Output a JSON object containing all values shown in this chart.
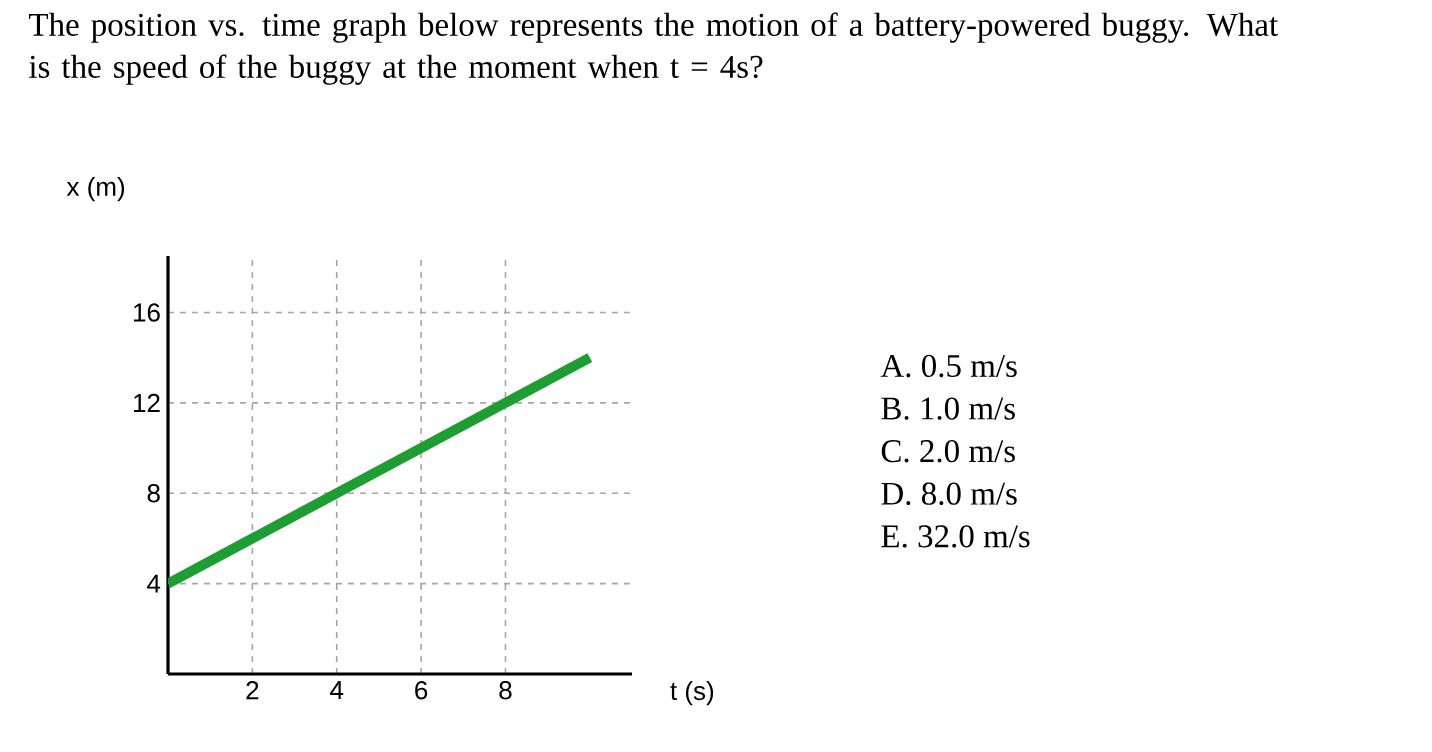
{
  "chart_data": {
    "type": "line",
    "title": "The position vs. time graph below represents the motion of a battery-powered buggy. What is the speed of the buggy at the moment when t = 4s?",
    "xlabel": "t (s)",
    "ylabel": "x (m)",
    "x": [
      0,
      10
    ],
    "series": [
      {
        "color": "#1e9e32",
        "values": [
          4,
          14
        ]
      }
    ],
    "xlim": [
      0,
      11
    ],
    "ylim": [
      0,
      18.5
    ],
    "xticks": [
      2,
      4,
      6,
      8
    ],
    "yticks": [
      4,
      8,
      12,
      16
    ],
    "grid": true,
    "marker": "none",
    "line_style": "solid",
    "annotations": [
      "A.  0.5 m/s",
      "B.  1.0 m/s",
      "C.  2.0 m/s",
      "D.  8.0 m/s",
      "E.  32.0 m/s"
    ]
  }
}
